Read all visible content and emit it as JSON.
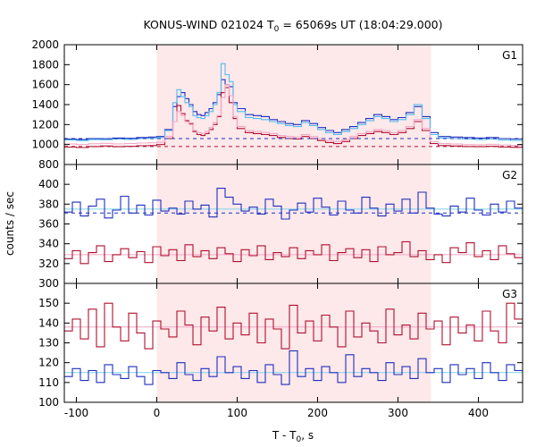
{
  "chart_data": {
    "type": "line",
    "title_main": "KONUS-WIND 021024 T",
    "title_sub": "0",
    "title_rest": " = 65069s UT (18:04:29.000)",
    "xlabel_main": "T - T",
    "xlabel_sub": "0",
    "xlabel_rest": ", s",
    "ylabel": "counts / sec",
    "xlim": [
      -115,
      455
    ],
    "xticks": [
      -100,
      0,
      100,
      200,
      300,
      400
    ],
    "highlight": {
      "x0": 0,
      "x1": 341,
      "color": "#fde8ea"
    },
    "grid": false,
    "panels": [
      {
        "name": "G1",
        "ylim": [
          800,
          2000
        ],
        "yticks": [
          800,
          1000,
          1200,
          1400,
          1600,
          1800,
          2000
        ],
        "ytick_labels": [
          "800",
          "1000",
          "1200",
          "1400",
          "1600",
          "1800",
          "2000"
        ],
        "x": [
          -115,
          -100,
          -85,
          -70,
          -55,
          -40,
          -25,
          -10,
          0,
          10,
          20,
          25,
          30,
          35,
          40,
          45,
          50,
          55,
          60,
          65,
          70,
          75,
          80,
          85,
          90,
          95,
          100,
          110,
          120,
          130,
          140,
          150,
          160,
          170,
          180,
          190,
          200,
          210,
          220,
          230,
          240,
          250,
          260,
          270,
          280,
          290,
          300,
          310,
          320,
          330,
          340,
          350,
          365,
          380,
          395,
          410,
          425,
          440,
          455
        ],
        "series": [
          {
            "color": "#1e2fbf",
            "values": [
              1055,
              1050,
              1060,
              1058,
              1065,
              1062,
              1070,
              1075,
              1080,
              1150,
              1380,
              1480,
              1520,
              1460,
              1400,
              1330,
              1300,
              1290,
              1320,
              1360,
              1420,
              1500,
              1650,
              1600,
              1580,
              1420,
              1360,
              1300,
              1290,
              1280,
              1250,
              1230,
              1210,
              1200,
              1240,
              1210,
              1170,
              1140,
              1120,
              1150,
              1180,
              1220,
              1260,
              1300,
              1280,
              1250,
              1270,
              1320,
              1380,
              1280,
              1120,
              1080,
              1075,
              1070,
              1065,
              1070,
              1060,
              1055,
              1050
            ]
          },
          {
            "color": "#55bbee",
            "values": [
              1045,
              1040,
              1050,
              1048,
              1055,
              1052,
              1060,
              1062,
              1070,
              1140,
              1420,
              1550,
              1480,
              1420,
              1380,
              1290,
              1270,
              1260,
              1290,
              1330,
              1400,
              1520,
              1810,
              1700,
              1630,
              1400,
              1330,
              1270,
              1260,
              1250,
              1230,
              1210,
              1190,
              1180,
              1220,
              1190,
              1150,
              1120,
              1100,
              1130,
              1160,
              1200,
              1240,
              1280,
              1260,
              1230,
              1250,
              1300,
              1400,
              1260,
              1100,
              1065,
              1060,
              1055,
              1050,
              1055,
              1045,
              1040,
              1035
            ]
          },
          {
            "color": "#b01030",
            "values": [
              975,
              970,
              980,
              985,
              978,
              982,
              988,
              990,
              1000,
              1060,
              1230,
              1390,
              1310,
              1240,
              1210,
              1130,
              1100,
              1090,
              1110,
              1150,
              1200,
              1280,
              1520,
              1570,
              1420,
              1260,
              1160,
              1120,
              1110,
              1100,
              1090,
              1070,
              1060,
              1055,
              1080,
              1060,
              1040,
              1020,
              1010,
              1030,
              1060,
              1090,
              1110,
              1130,
              1120,
              1100,
              1120,
              1160,
              1230,
              1140,
              1010,
              990,
              985,
              980,
              978,
              982,
              975,
              972,
              970
            ]
          },
          {
            "color": "#f4a6c4",
            "values": [
              1005,
              1000,
              1008,
              1012,
              1006,
              1010,
              1015,
              1018,
              1025,
              1080,
              1230,
              1330,
              1290,
              1230,
              1200,
              1140,
              1120,
              1110,
              1130,
              1170,
              1220,
              1290,
              1470,
              1600,
              1490,
              1280,
              1180,
              1140,
              1130,
              1120,
              1110,
              1090,
              1080,
              1075,
              1100,
              1080,
              1060,
              1040,
              1030,
              1050,
              1080,
              1110,
              1130,
              1150,
              1140,
              1120,
              1140,
              1180,
              1250,
              1160,
              1030,
              1010,
              1005,
              1000,
              998,
              1002,
              995,
              992,
              990
            ]
          }
        ],
        "dashed": [
          {
            "color": "#1e2fbf",
            "y": 1060
          },
          {
            "color": "#b01030",
            "y": 980
          }
        ]
      },
      {
        "name": "G2",
        "ylim": [
          300,
          420
        ],
        "yticks": [
          300,
          320,
          340,
          360,
          380,
          400
        ],
        "ytick_labels": [
          "300",
          "320",
          "340",
          "360",
          "380",
          "400"
        ],
        "x": [
          -115,
          -105,
          -95,
          -85,
          -75,
          -65,
          -55,
          -45,
          -35,
          -25,
          -15,
          -5,
          5,
          15,
          25,
          35,
          45,
          55,
          65,
          75,
          85,
          95,
          105,
          115,
          125,
          135,
          145,
          155,
          165,
          175,
          185,
          195,
          205,
          215,
          225,
          235,
          245,
          255,
          265,
          275,
          285,
          295,
          305,
          315,
          325,
          335,
          345,
          355,
          365,
          375,
          385,
          395,
          405,
          415,
          425,
          435,
          445,
          455
        ],
        "series": [
          {
            "color": "#1e2fbf",
            "values": [
              372,
              382,
              368,
              378,
              385,
              366,
              374,
              388,
              371,
              379,
              369,
              384,
              373,
              376,
              370,
              383,
              375,
              379,
              367,
              396,
              387,
              380,
              373,
              377,
              370,
              385,
              378,
              365,
              374,
              381,
              372,
              386,
              377,
              369,
              383,
              374,
              371,
              387,
              376,
              368,
              380,
              373,
              385,
              371,
              392,
              376,
              370,
              368,
              378,
              372,
              386,
              374,
              369,
              380,
              372,
              383,
              376,
              371
            ]
          },
          {
            "color": "#b01030",
            "values": [
              325,
              333,
              320,
              331,
              338,
              322,
              329,
              335,
              326,
              332,
              321,
              337,
              328,
              334,
              323,
              339,
              327,
              333,
              325,
              336,
              330,
              322,
              334,
              328,
              338,
              324,
              331,
              327,
              336,
              325,
              333,
              329,
              339,
              323,
              331,
              335,
              326,
              334,
              322,
              337,
              329,
              331,
              342,
              327,
              333,
              324,
              329,
              321,
              336,
              331,
              341,
              327,
              333,
              324,
              338,
              330,
              326,
              332
            ]
          }
        ],
        "dashed": [
          {
            "color": "#1e2fbf",
            "y": 371
          }
        ],
        "flat": [
          {
            "color": "#7fd3ee",
            "y": 375
          },
          {
            "color": "#f4a6c4",
            "y": 329
          }
        ]
      },
      {
        "name": "G3",
        "ylim": [
          100,
          160
        ],
        "yticks": [
          100,
          110,
          120,
          130,
          140,
          150
        ],
        "ytick_labels": [
          "100",
          "110",
          "120",
          "130",
          "140",
          "150"
        ],
        "x": [
          -115,
          -105,
          -95,
          -85,
          -75,
          -65,
          -55,
          -45,
          -35,
          -25,
          -15,
          -5,
          5,
          15,
          25,
          35,
          45,
          55,
          65,
          75,
          85,
          95,
          105,
          115,
          125,
          135,
          145,
          155,
          165,
          175,
          185,
          195,
          205,
          215,
          225,
          235,
          245,
          255,
          265,
          275,
          285,
          295,
          305,
          315,
          325,
          335,
          345,
          355,
          365,
          375,
          385,
          395,
          405,
          415,
          425,
          435,
          445,
          455
        ],
        "series": [
          {
            "color": "#b01030",
            "values": [
              136,
              142,
              132,
              147,
              128,
              150,
              138,
              131,
              145,
              135,
              127,
              141,
              137,
              133,
              146,
              139,
              129,
              143,
              136,
              148,
              132,
              140,
              134,
              145,
              130,
              142,
              137,
              127,
              149,
              135,
              141,
              131,
              144,
              138,
              128,
              146,
              133,
              140,
              136,
              130,
              147,
              134,
              139,
              132,
              145,
              137,
              141,
              129,
              143,
              135,
              139,
              131,
              146,
              136,
              130,
              150,
              142,
              134
            ]
          },
          {
            "color": "#1e2fbf",
            "values": [
              113,
              117,
              111,
              116,
              110,
              119,
              114,
              112,
              118,
              113,
              109,
              116,
              115,
              112,
              120,
              114,
              111,
              117,
              113,
              123,
              115,
              118,
              112,
              116,
              110,
              119,
              114,
              109,
              126,
              113,
              117,
              111,
              118,
              115,
              110,
              124,
              113,
              117,
              115,
              111,
              120,
              114,
              118,
              112,
              122,
              115,
              117,
              110,
              119,
              114,
              117,
              112,
              120,
              115,
              111,
              119,
              116,
              113
            ]
          }
        ],
        "flat": [
          {
            "color": "#f4a6c4",
            "y": 138
          },
          {
            "color": "#7fd3ee",
            "y": 115
          }
        ]
      }
    ]
  }
}
